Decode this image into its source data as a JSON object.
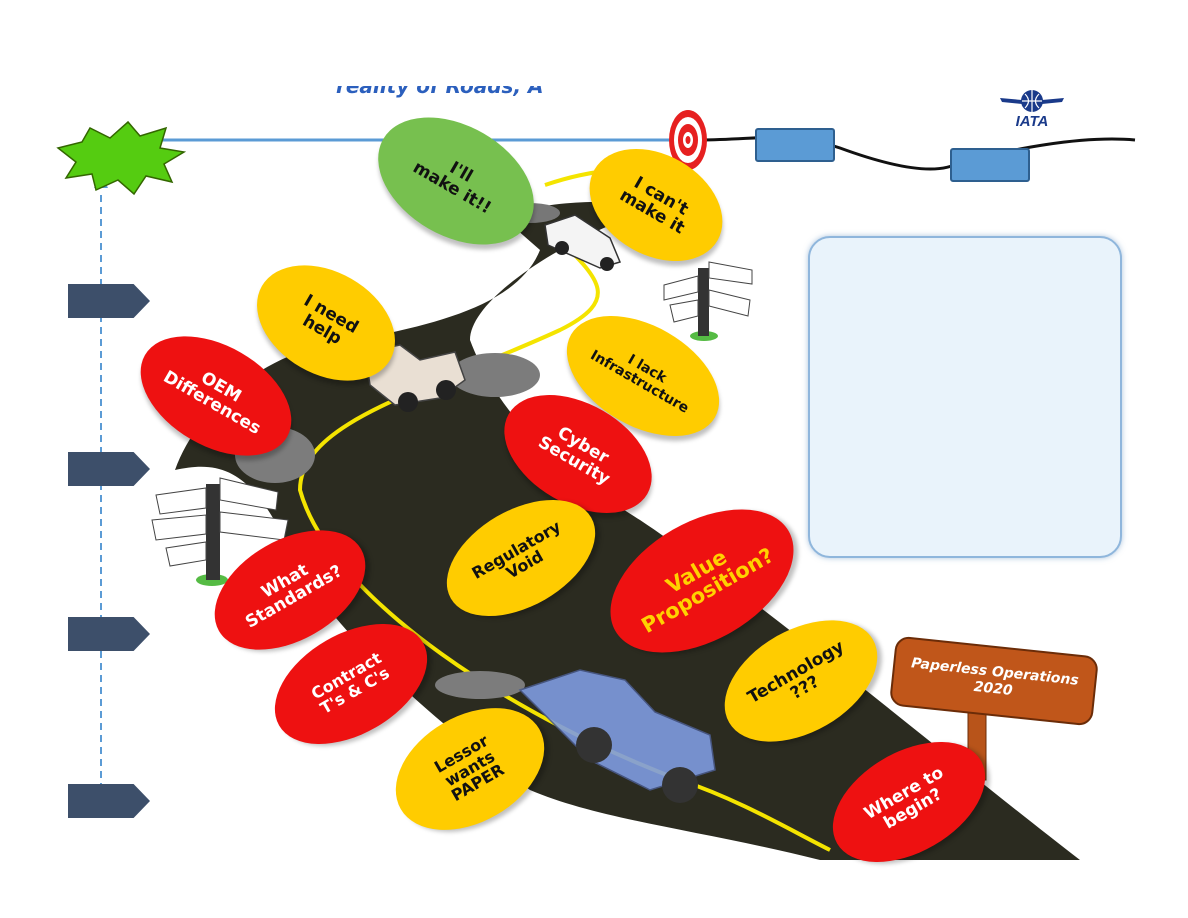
{
  "title_partial": "reality of Roads, A",
  "logo": {
    "text": "IATA"
  },
  "destination_sign": "Paperless Operations\n2020",
  "info_box_text": "",
  "colors": {
    "road": "#2b2b20",
    "road_line": "#f4e400",
    "axis": "#5b9bd5",
    "arrow": "#3d4f6a",
    "yellow": "#ffcc00",
    "red": "#ee1111",
    "green": "#77c04f"
  },
  "bubbles": {
    "ill_make_it": "I'll\nmake it!!",
    "i_cant_make_it": "I can't\nmake it",
    "i_need_help": "I need\nhelp",
    "i_lack_infrastructure": "I lack\nInfrastructure",
    "oem_differences": "OEM\nDifferences",
    "cyber_security": "Cyber\nSecurity",
    "regulatory_void": "Regulatory\nVoid",
    "value_proposition": "Value\nProposition?",
    "what_standards": "What\nStandards?",
    "technology": "Technology\n???",
    "contract_ts_cs": "Contract\nT's & C's",
    "lessor_wants_paper": "Lessor\nwants\nPAPER",
    "where_to_begin": "Where to\nbegin?"
  }
}
